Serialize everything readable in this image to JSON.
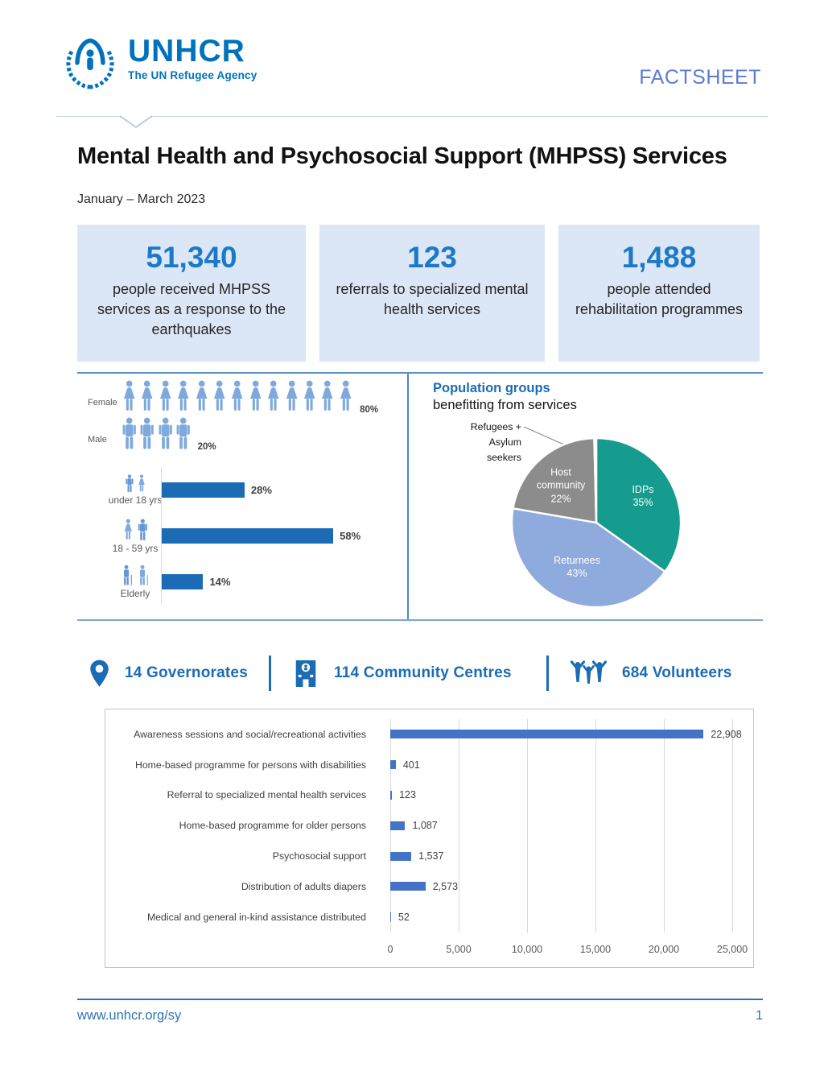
{
  "page": {
    "factsheet_label": "FACTSHEET",
    "title": "Mental Health and Psychosocial Support (MHPSS) Services",
    "period": "January – March 2023"
  },
  "logo": {
    "name": "UNHCR",
    "tagline": "The UN Refugee Agency"
  },
  "stat_boxes": [
    {
      "value": "51,340",
      "label": "people received MHPSS services as a response to the earthquakes"
    },
    {
      "value": "123",
      "label": "referrals to specialized mental health services"
    },
    {
      "value": "1,488",
      "label": "people attended rehabilitation programmes"
    }
  ],
  "colors": {
    "unhcr_blue": "#0072bc",
    "accent_blue": "#1b6cb5",
    "stat_number_blue": "#1b7ac6",
    "pictogram_blue": "#7fa9dc",
    "bar_blue": "#4472c4",
    "pie_teal": "#169b8f",
    "pie_periwinkle": "#8faadc",
    "pie_gray": "#8c8c8c"
  },
  "chart_data": [
    {
      "type": "pictogram",
      "categories": [
        "Female",
        "Male"
      ],
      "values": [
        80,
        20
      ],
      "value_labels": [
        "80%",
        "20%"
      ],
      "icon_counts": [
        13,
        4
      ],
      "unit": "%"
    },
    {
      "type": "bar",
      "categories": [
        "under 18 yrs",
        "18 - 59 yrs",
        "Elderly"
      ],
      "values": [
        28,
        58,
        14
      ],
      "value_labels": [
        "28%",
        "58%",
        "14%"
      ],
      "row_icons": [
        "children-pair-icon",
        "adults-pair-icon",
        "elderly-pair-icon"
      ],
      "unit": "%",
      "xlim": [
        0,
        83
      ],
      "orientation": "horizontal"
    },
    {
      "type": "pie",
      "title_bold": "Population groups",
      "title_rest": "benefitting from services",
      "slices": [
        {
          "label": "IDPs",
          "pct": 35,
          "pct_label": "35%",
          "color": "#169b8f"
        },
        {
          "label": "Returnees",
          "pct": 43,
          "pct_label": "43%",
          "color": "#8faadc"
        },
        {
          "label": "Host community",
          "pct": 22,
          "pct_label": "22%",
          "color": "#8c8c8c"
        },
        {
          "label": "Refugees + Asylum seekers",
          "pct": 0,
          "pct_label": "",
          "color": "#d0d0d0",
          "outside_label_lines": [
            "Refugees +",
            "Asylum",
            "seekers"
          ]
        }
      ],
      "start_angle": "12 o'clock, clockwise"
    },
    {
      "type": "bar",
      "orientation": "horizontal",
      "categories": [
        "Awareness sessions and social/recreational activities",
        "Home-based programme for persons with disabilities",
        "Referral to specialized mental health services",
        "Home-based programme for older persons",
        "Psychosocial support",
        "Distribution of adults diapers",
        "Medical and general in-kind assistance distributed"
      ],
      "values": [
        22908,
        401,
        123,
        1087,
        1537,
        2573,
        52
      ],
      "value_labels": [
        "22,908",
        "401",
        "123",
        "1,087",
        "1,537",
        "2,573",
        "52"
      ],
      "xlim": [
        0,
        25000
      ],
      "xticks": [
        0,
        5000,
        10000,
        15000,
        20000,
        25000
      ],
      "xtick_labels": [
        "0",
        "5,000",
        "10,000",
        "15,000",
        "20,000",
        "25,000"
      ],
      "grid": true
    }
  ],
  "kpi_row": [
    {
      "icon": "location-pin-icon",
      "label": "14 Governorates"
    },
    {
      "icon": "community-centre-icon",
      "label": "114 Community Centres"
    },
    {
      "icon": "volunteers-icon",
      "label": "684 Volunteers"
    }
  ],
  "footer": {
    "link": "www.unhcr.org/sy",
    "page_number": "1"
  }
}
